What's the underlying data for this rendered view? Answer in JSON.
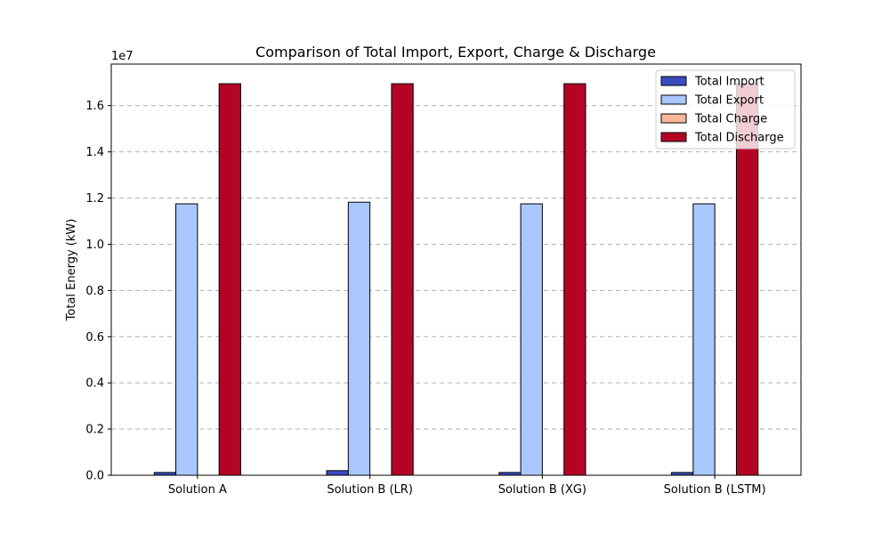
{
  "chart_data": {
    "type": "bar",
    "title": "Comparison of Total Import, Export, Charge & Discharge",
    "xlabel": "",
    "ylabel": "Total Energy (kW)",
    "y_scale_label": "1e7",
    "ylim": [
      0,
      17800000
    ],
    "yticks": [
      0,
      2000000,
      4000000,
      6000000,
      8000000,
      10000000,
      12000000,
      14000000,
      16000000
    ],
    "ytick_labels": [
      "0.0",
      "0.2",
      "0.4",
      "0.6",
      "0.8",
      "1.0",
      "1.2",
      "1.4",
      "1.6"
    ],
    "grid": "y-dashed",
    "legend_position": "top-right",
    "categories": [
      "Solution A",
      "Solution B (LR)",
      "Solution B (XG)",
      "Solution B (LSTM)"
    ],
    "series": [
      {
        "name": "Total Import",
        "color": "#3b4cc0",
        "values": [
          120000,
          200000,
          120000,
          120000
        ]
      },
      {
        "name": "Total Export",
        "color": "#aac7fd",
        "values": [
          11750000,
          11820000,
          11750000,
          11750000
        ]
      },
      {
        "name": "Total Charge",
        "color": "#f7b89c",
        "values": [
          0,
          0,
          0,
          0
        ]
      },
      {
        "name": "Total Discharge",
        "color": "#b40426",
        "values": [
          16950000,
          16950000,
          16950000,
          16950000
        ]
      }
    ]
  }
}
